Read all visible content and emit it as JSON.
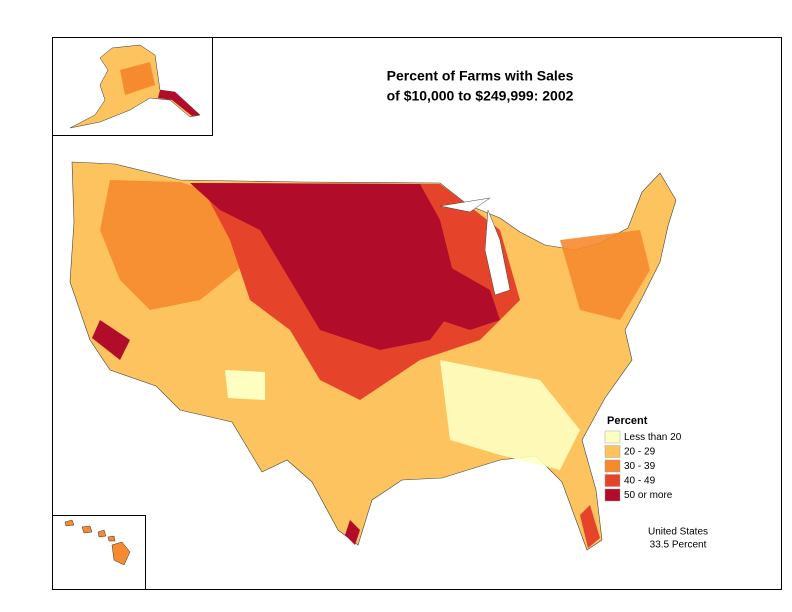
{
  "header": {
    "title_lines": [
      "Percent of Farms with Sales",
      "of $10,000 to $249,999:  2002"
    ]
  },
  "legend": {
    "title": "Percent",
    "items": [
      {
        "label": "Less than 20",
        "color": "#ffffc2"
      },
      {
        "label": "20 - 29",
        "color": "#fcc35f"
      },
      {
        "label": "30 - 39",
        "color": "#f68a2f"
      },
      {
        "label": "40 - 49",
        "color": "#e6432b"
      },
      {
        "label": "50 or more",
        "color": "#b10d2b"
      }
    ]
  },
  "note": [
    "United States",
    "33.5 Percent"
  ]
}
